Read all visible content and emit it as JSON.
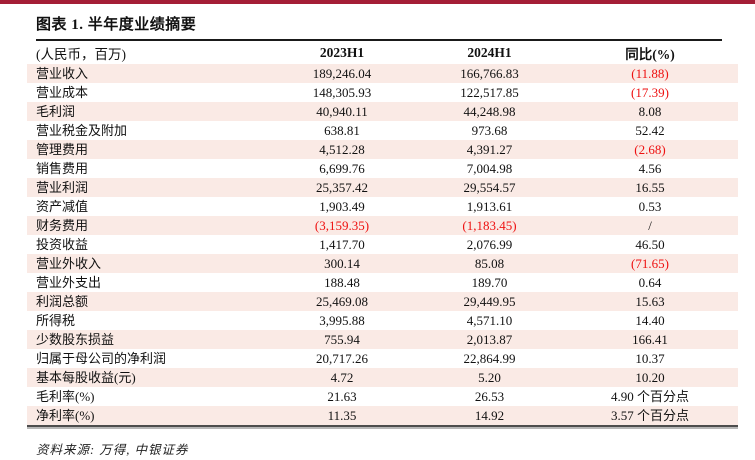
{
  "figure": {
    "title": "图表 1. 半年度业绩摘要",
    "source": "资料来源: 万得, 中银证券"
  },
  "colors": {
    "accent_bar": "#A41E36",
    "row_alt_background": "#FAEAE5",
    "negative_value": "#EE1111"
  },
  "table": {
    "headers": [
      "(人民币，百万)",
      "2023H1",
      "2024H1",
      "同比(%)"
    ],
    "rows": [
      {
        "label": "营业收入",
        "v2023": "189,246.04",
        "v2024": "166,766.83",
        "yoy": "(11.88)",
        "v2023_neg": false,
        "v2024_neg": false,
        "yoy_neg": true
      },
      {
        "label": "营业成本",
        "v2023": "148,305.93",
        "v2024": "122,517.85",
        "yoy": "(17.39)",
        "v2023_neg": false,
        "v2024_neg": false,
        "yoy_neg": true
      },
      {
        "label": "毛利润",
        "v2023": "40,940.11",
        "v2024": "44,248.98",
        "yoy": "8.08",
        "v2023_neg": false,
        "v2024_neg": false,
        "yoy_neg": false
      },
      {
        "label": "营业税金及附加",
        "v2023": "638.81",
        "v2024": "973.68",
        "yoy": "52.42",
        "v2023_neg": false,
        "v2024_neg": false,
        "yoy_neg": false
      },
      {
        "label": "管理费用",
        "v2023": "4,512.28",
        "v2024": "4,391.27",
        "yoy": "(2.68)",
        "v2023_neg": false,
        "v2024_neg": false,
        "yoy_neg": true
      },
      {
        "label": "销售费用",
        "v2023": "6,699.76",
        "v2024": "7,004.98",
        "yoy": "4.56",
        "v2023_neg": false,
        "v2024_neg": false,
        "yoy_neg": false
      },
      {
        "label": "营业利润",
        "v2023": "25,357.42",
        "v2024": "29,554.57",
        "yoy": "16.55",
        "v2023_neg": false,
        "v2024_neg": false,
        "yoy_neg": false
      },
      {
        "label": "资产减值",
        "v2023": "1,903.49",
        "v2024": "1,913.61",
        "yoy": "0.53",
        "v2023_neg": false,
        "v2024_neg": false,
        "yoy_neg": false
      },
      {
        "label": "财务费用",
        "v2023": "(3,159.35)",
        "v2024": "(1,183.45)",
        "yoy": "/",
        "v2023_neg": true,
        "v2024_neg": true,
        "yoy_neg": false
      },
      {
        "label": "投资收益",
        "v2023": "1,417.70",
        "v2024": "2,076.99",
        "yoy": "46.50",
        "v2023_neg": false,
        "v2024_neg": false,
        "yoy_neg": false
      },
      {
        "label": "营业外收入",
        "v2023": "300.14",
        "v2024": "85.08",
        "yoy": "(71.65)",
        "v2023_neg": false,
        "v2024_neg": false,
        "yoy_neg": true
      },
      {
        "label": "营业外支出",
        "v2023": "188.48",
        "v2024": "189.70",
        "yoy": "0.64",
        "v2023_neg": false,
        "v2024_neg": false,
        "yoy_neg": false
      },
      {
        "label": "利润总额",
        "v2023": "25,469.08",
        "v2024": "29,449.95",
        "yoy": "15.63",
        "v2023_neg": false,
        "v2024_neg": false,
        "yoy_neg": false
      },
      {
        "label": "所得税",
        "v2023": "3,995.88",
        "v2024": "4,571.10",
        "yoy": "14.40",
        "v2023_neg": false,
        "v2024_neg": false,
        "yoy_neg": false
      },
      {
        "label": "少数股东损益",
        "v2023": "755.94",
        "v2024": "2,013.87",
        "yoy": "166.41",
        "v2023_neg": false,
        "v2024_neg": false,
        "yoy_neg": false
      },
      {
        "label": "归属于母公司的净利润",
        "v2023": "20,717.26",
        "v2024": "22,864.99",
        "yoy": "10.37",
        "v2023_neg": false,
        "v2024_neg": false,
        "yoy_neg": false
      },
      {
        "label": "基本每股收益(元)",
        "v2023": "4.72",
        "v2024": "5.20",
        "yoy": "10.20",
        "v2023_neg": false,
        "v2024_neg": false,
        "yoy_neg": false
      },
      {
        "label": "毛利率(%)",
        "v2023": "21.63",
        "v2024": "26.53",
        "yoy": "4.90 个百分点",
        "v2023_neg": false,
        "v2024_neg": false,
        "yoy_neg": false
      },
      {
        "label": "净利率(%)",
        "v2023": "11.35",
        "v2024": "14.92",
        "yoy": "3.57 个百分点",
        "v2023_neg": false,
        "v2024_neg": false,
        "yoy_neg": false
      }
    ]
  }
}
